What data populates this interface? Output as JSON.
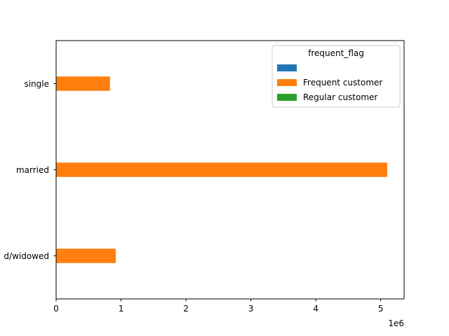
{
  "chart_data": {
    "type": "bar",
    "orientation": "horizontal",
    "categories": [
      "divorced/widowed",
      "married",
      "single"
    ],
    "category_labels_visible": [
      "d/widowed",
      "married",
      "single"
    ],
    "series": [
      {
        "name": "",
        "color": "#1f77b4",
        "values": [
          0,
          0,
          0
        ]
      },
      {
        "name": "Frequent customer",
        "color": "#ff7f0e",
        "values": [
          920000,
          5100000,
          830000
        ]
      },
      {
        "name": "Regular customer",
        "color": "#2ca02c",
        "values": [
          0,
          0,
          0
        ]
      }
    ],
    "xlim": [
      0,
      5360000
    ],
    "xticks": [
      0,
      1000000,
      2000000,
      3000000,
      4000000,
      5000000
    ],
    "xtick_labels": [
      "0",
      "1",
      "2",
      "3",
      "4",
      "5"
    ],
    "x_offset_label": "1e6",
    "title": "",
    "xlabel": "",
    "ylabel": "",
    "legend": {
      "title": "frequent_flag",
      "placement": "top-right"
    },
    "grid": false
  }
}
